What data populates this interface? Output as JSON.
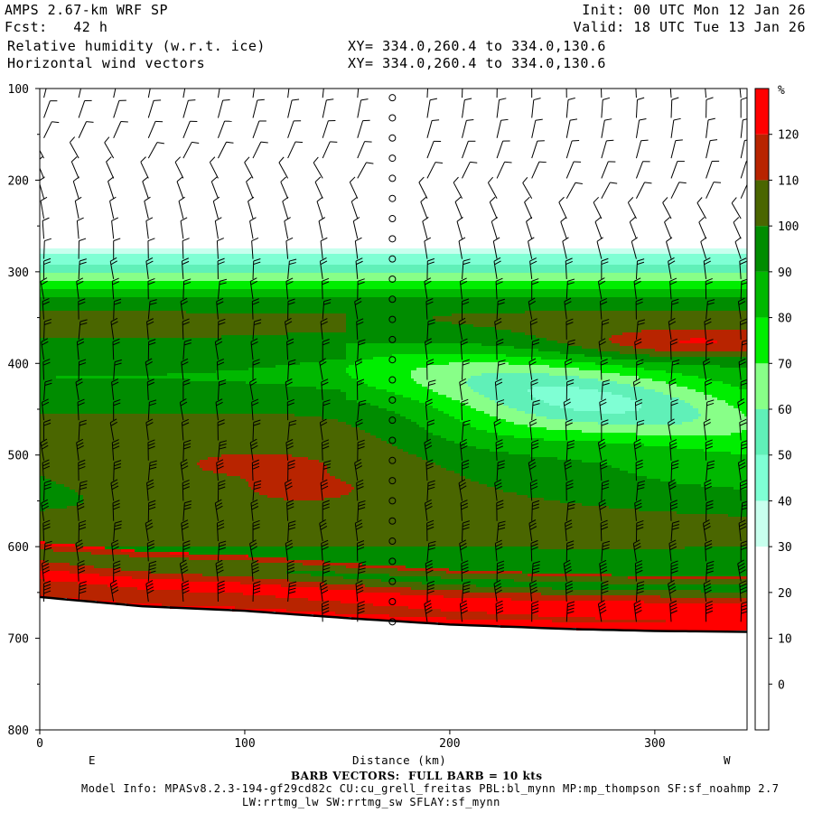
{
  "header": {
    "model": "AMPS 2.67-km WRF SP",
    "init": "Init: 00 UTC Mon 12 Jan 26",
    "fcst": "Fcst:   42 h",
    "valid": "Valid: 18 UTC Tue 13 Jan 26",
    "field1": "Relative humidity (w.r.t. ice)",
    "field2": "Horizontal wind vectors",
    "xy1": "XY= 334.0,260.4 to 334.0,130.6",
    "xy2": "XY= 334.0,260.4 to 334.0,130.6"
  },
  "footer": {
    "barb_note": "BARB VECTORS:  FULL BARB = 10 kts",
    "model_info": "Model Info: MPASv8.2.3-194-gf29cd82c CU:cu_grell_freitas PBL:bl_mynn MP:mp_thompson SF:sf_noahmp 2.7",
    "model_info2": "LW:rrtmg_lw SW:rrtmg_sw SFLAY:sf_mynn"
  },
  "chart_data": {
    "type": "heatmap",
    "xlabel": "Distance (km)",
    "ylabel": "",
    "x_ticks": [
      0,
      100,
      200,
      300
    ],
    "y_ticks": [
      100,
      200,
      300,
      400,
      500,
      600,
      700,
      800
    ],
    "xlim": [
      0,
      345
    ],
    "ylim": [
      800,
      100
    ],
    "y_scale": "pressure-linear-inverted",
    "left_marker": "E",
    "right_marker": "W",
    "colorbar": {
      "unit": "%",
      "levels": [
        0,
        10,
        20,
        30,
        40,
        50,
        60,
        70,
        80,
        90,
        100,
        110,
        120
      ],
      "colors": [
        "#ffffff",
        "#ffffff",
        "#ffffff",
        "#ffffff",
        "#c8ffee",
        "#7fffd4",
        "#60f0b8",
        "#88ff88",
        "#00ee00",
        "#00b800",
        "#008c00",
        "#4a6600",
        "#b82400",
        "#ff0000"
      ]
    },
    "rh_field": {
      "description": "Relative humidity contours along cross-section",
      "cloud_top_hPa": 285,
      "terrain_surface_hPa": [
        [
          0,
          655
        ],
        [
          50,
          665
        ],
        [
          100,
          670
        ],
        [
          150,
          678
        ],
        [
          200,
          685
        ],
        [
          260,
          690
        ],
        [
          300,
          692
        ],
        [
          345,
          693
        ]
      ],
      "features": [
        {
          "name": "dry green pocket",
          "x_range": [
            160,
            345
          ],
          "p_range": [
            400,
            540
          ],
          "rh": 70
        },
        {
          "name": "upper moist core",
          "x_range": [
            270,
            345
          ],
          "p_range": [
            355,
            395
          ],
          "rh": 115
        },
        {
          "name": "mid-level red layer",
          "x_range": [
            0,
            230
          ],
          "p_range": [
            480,
            600
          ],
          "rh": 115
        },
        {
          "name": "near-surface red band",
          "x_range": [
            0,
            345
          ],
          "p_range": [
            625,
            690
          ],
          "rh": 120
        }
      ]
    }
  }
}
